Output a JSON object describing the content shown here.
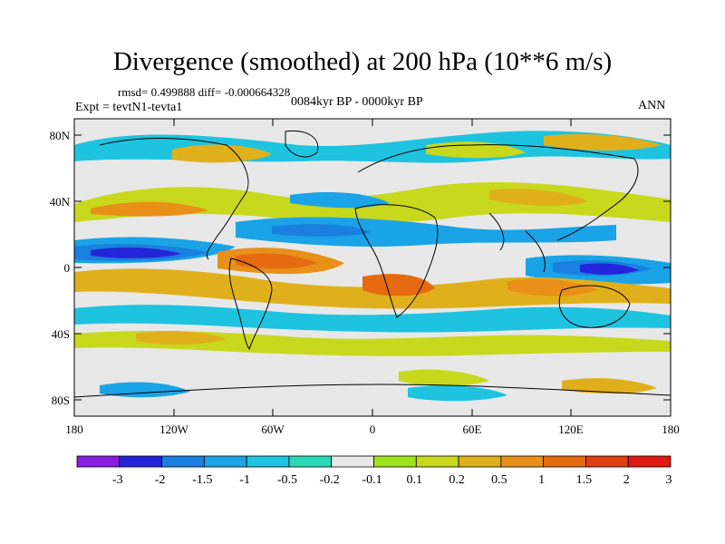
{
  "title": "Divergence (smoothed) at 200 hPa (10**6 m/s)",
  "stats_line": "rmsd= 0.499888 diff= -0.000664328",
  "period_line": "0084kyr BP - 0000kyr BP",
  "experiment_line": "Expt = tevtN1-tevta1",
  "season": "ANN",
  "lat_labels": [
    "80N",
    "40N",
    "0",
    "40S",
    "80S"
  ],
  "lon_labels": [
    "180",
    "120W",
    "60W",
    "0",
    "60E",
    "120E",
    "180"
  ],
  "colorbar": {
    "labels": [
      "-3",
      "-2",
      "-1.5",
      "-1",
      "-0.5",
      "-0.2",
      "-0.1",
      "0.1",
      "0.2",
      "0.5",
      "1",
      "1.5",
      "2",
      "3"
    ],
    "colors": [
      "#8a1be0",
      "#2424d8",
      "#1a7fe0",
      "#1aa3e6",
      "#1ec3e0",
      "#28d8b4",
      "#e8e8e8",
      "#9ee21a",
      "#c8d81c",
      "#e0b01c",
      "#e89018",
      "#e66a10",
      "#e04010",
      "#e01a10"
    ]
  }
}
